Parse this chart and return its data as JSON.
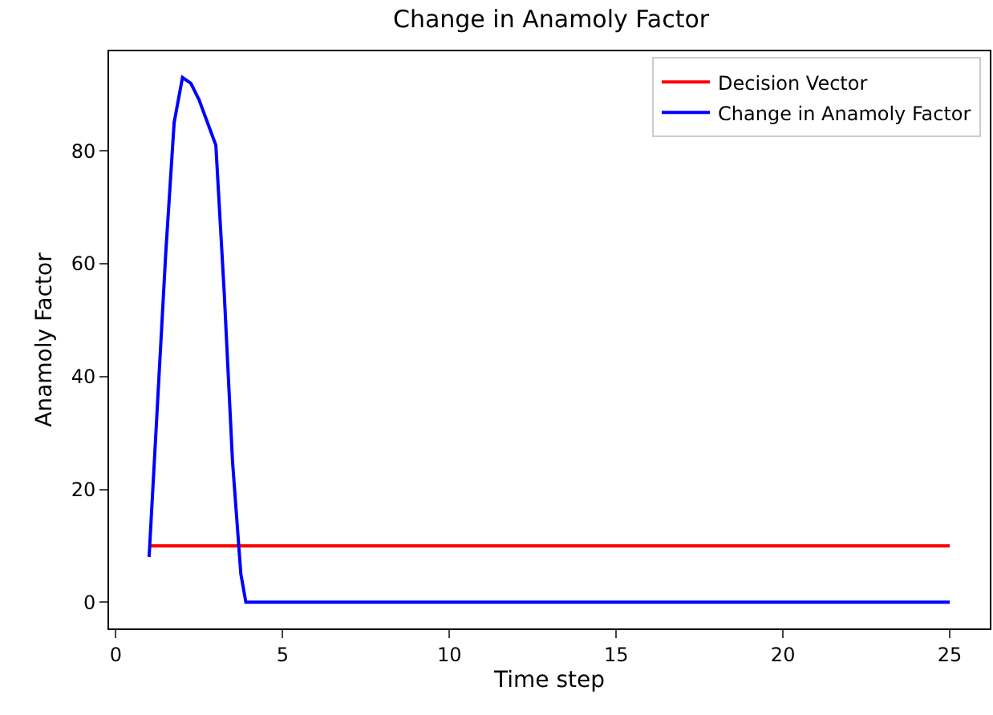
{
  "chart_data": {
    "type": "line",
    "title": "Change in Anamoly Factor",
    "xlabel": "Time step",
    "ylabel": "Anamoly Factor",
    "xlim": [
      -0.2,
      26.2
    ],
    "xticks": [
      0,
      5,
      10,
      15,
      20,
      25
    ],
    "ylim": [
      -4.65,
      97.65
    ],
    "yticks": [
      0,
      20,
      40,
      60,
      80
    ],
    "grid": false,
    "legend": "top right",
    "line_style": "solid",
    "marker": "none",
    "series": [
      {
        "name": "Decision Vector",
        "color": "#ff0000",
        "x": [
          1,
          25
        ],
        "values": [
          10,
          10
        ]
      },
      {
        "name": "Change in Anamoly Factor",
        "color": "#0000ff",
        "x": [
          1,
          1.25,
          1.5,
          1.75,
          2,
          2.25,
          2.5,
          2.75,
          3,
          3.25,
          3.5,
          3.75,
          3.9,
          4,
          25
        ],
        "values": [
          8,
          35,
          62,
          85,
          93,
          92,
          89,
          85,
          81,
          55,
          25,
          5,
          0,
          0,
          0
        ]
      }
    ]
  }
}
